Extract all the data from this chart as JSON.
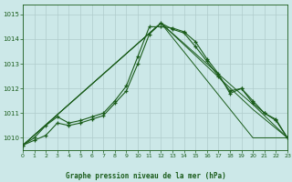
{
  "x": [
    0,
    1,
    2,
    3,
    4,
    5,
    6,
    7,
    8,
    9,
    10,
    11,
    12,
    13,
    14,
    15,
    16,
    17,
    18,
    19,
    20,
    21,
    22,
    23
  ],
  "line1": [
    1009.7,
    1009.9,
    1010.1,
    1010.6,
    1010.5,
    1010.6,
    1010.75,
    1010.9,
    1011.4,
    1011.9,
    1013.0,
    1014.2,
    1014.65,
    1014.4,
    1014.25,
    1013.7,
    1013.1,
    1012.5,
    1011.9,
    1012.0,
    1011.4,
    1011.0,
    1010.7,
    1010.0
  ],
  "line2": [
    1009.7,
    1010.0,
    1010.5,
    1010.85,
    1010.6,
    1010.7,
    1010.85,
    1011.0,
    1011.5,
    1012.1,
    1013.3,
    1014.5,
    1014.5,
    1014.45,
    1014.3,
    1013.9,
    1013.2,
    1012.6,
    1011.8,
    1012.0,
    1011.5,
    1011.0,
    1010.75,
    1010.0
  ],
  "line3_x": [
    0,
    12,
    20,
    23
  ],
  "line3_y": [
    1009.7,
    1014.65,
    1011.35,
    1010.0
  ],
  "line4_x": [
    0,
    12,
    20,
    23
  ],
  "line4_y": [
    1009.7,
    1014.65,
    1011.15,
    1010.0
  ],
  "line5_x": [
    0,
    12,
    20,
    23
  ],
  "line5_y": [
    1009.7,
    1014.65,
    1010.0,
    1010.0
  ],
  "ylim_min": 1009.5,
  "ylim_max": 1015.4,
  "yticks": [
    1010,
    1011,
    1012,
    1013,
    1014,
    1015
  ],
  "bg_color": "#cce8e8",
  "grid_color": "#b0cccc",
  "line_color": "#1a5c1a",
  "xlabel": "Graphe pression niveau de la mer (hPa)"
}
